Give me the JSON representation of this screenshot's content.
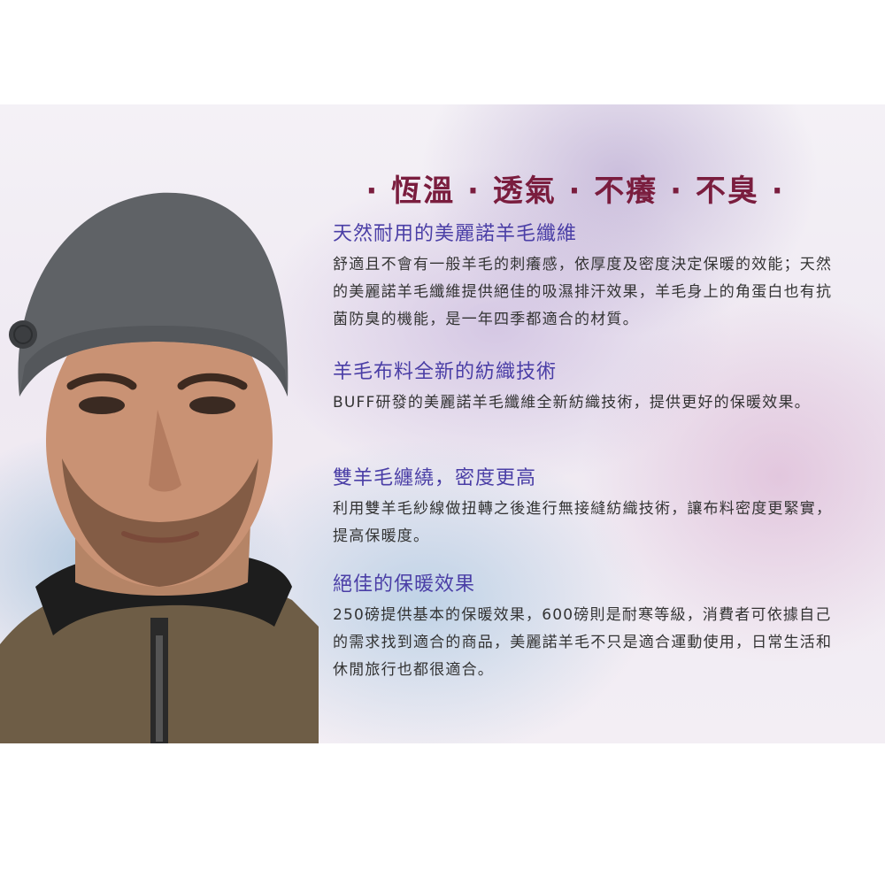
{
  "headline": "· 恆溫 · 透氣 · 不癢 · 不臭 ·",
  "sections": [
    {
      "title": "天然耐用的美麗諾羊毛纖維",
      "body": "舒適且不會有一般羊毛的刺癢感，依厚度及密度決定保暖的效能；天然的美麗諾羊毛纖維提供絕佳的吸濕排汗效果，羊毛身上的角蛋白也有抗菌防臭的機能，是一年四季都適合的材質。"
    },
    {
      "title": "羊毛布料全新的紡織技術",
      "body": "BUFF研發的美麗諾羊毛纖維全新紡織技術，提供更好的保暖效果。"
    },
    {
      "title": "雙羊毛纏繞，密度更高",
      "body": "利用雙羊毛紗線做扭轉之後進行無接縫紡織技術，讓布料密度更緊實，提高保暖度。"
    },
    {
      "title": "絕佳的保暖效果",
      "body": "250磅提供基本的保暖效果，600磅則是耐寒等級，消費者可依據自己的需求找到適合的商品，美麗諾羊毛不只是適合運動使用，日常生活和休閒旅行也都很適合。"
    }
  ],
  "colors": {
    "heading": "#7a1d3e",
    "section_title": "#4a3ea6",
    "body_text": "#333333"
  }
}
